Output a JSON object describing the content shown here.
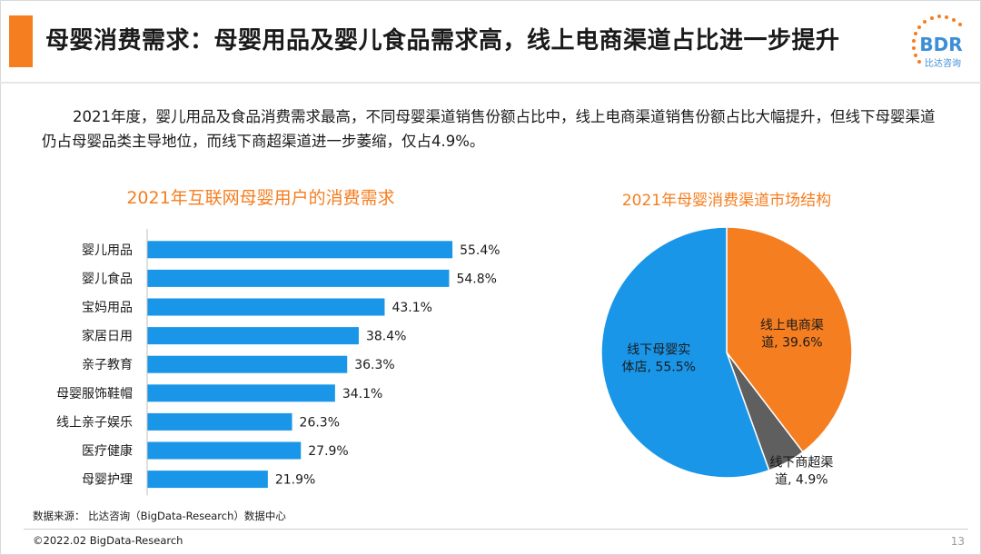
{
  "header": {
    "title": "母婴消费需求：母婴用品及婴儿食品需求高，线上电商渠道占比进一步提升"
  },
  "logo": {
    "text": "BDR",
    "subtext": "比达咨询"
  },
  "summary": "2021年度，婴儿用品及食品消费需求最高，不同母婴渠道销售份额占比中，线上电商渠道销售份额占比大幅提升，但线下母婴渠道仍占母婴品类主导地位，而线下商超渠道进一步萎缩，仅占4.9%。",
  "chart_data": [
    {
      "type": "bar",
      "orientation": "horizontal",
      "title": "2021年互联网母婴用户的消费需求",
      "categories": [
        "婴儿用品",
        "婴儿食品",
        "宝妈用品",
        "家居日用",
        "亲子教育",
        "母婴服饰鞋帽",
        "线上亲子娱乐",
        "医疗健康",
        "母婴护理"
      ],
      "values": [
        55.4,
        54.8,
        43.1,
        38.4,
        36.3,
        34.1,
        26.3,
        27.9,
        21.9
      ],
      "value_labels": [
        "55.4%",
        "54.8%",
        "43.1%",
        "38.4%",
        "36.3%",
        "34.1%",
        "26.3%",
        "27.9%",
        "21.9%"
      ],
      "unit": "%",
      "color": "#1a96e8",
      "xlim": [
        0,
        60
      ]
    },
    {
      "type": "pie",
      "title": "2021年母婴消费渠道市场结构",
      "slices": [
        {
          "name": "线上电商渠道",
          "value": 39.6,
          "label_lines": [
            "线上电商渠",
            "道, 39.6%"
          ],
          "color": "#f57e20",
          "label_position": "inside"
        },
        {
          "name": "线下商超渠道",
          "value": 4.9,
          "label_lines": [
            "线下商超渠",
            "道, 4.9%"
          ],
          "color": "#5f5f5f",
          "label_position": "outside"
        },
        {
          "name": "线下母婴实体店",
          "value": 55.5,
          "label_lines": [
            "线下母婴实",
            "体店, 55.5%"
          ],
          "color": "#1a96e8",
          "label_position": "inside"
        }
      ],
      "start": "12 o'clock",
      "direction": "clockwise"
    }
  ],
  "footer": {
    "source": "数据来源：  比达咨询（BigData-Research）数据中心",
    "copyright": "©2022.02 BigData-Research",
    "page_number": "13"
  }
}
